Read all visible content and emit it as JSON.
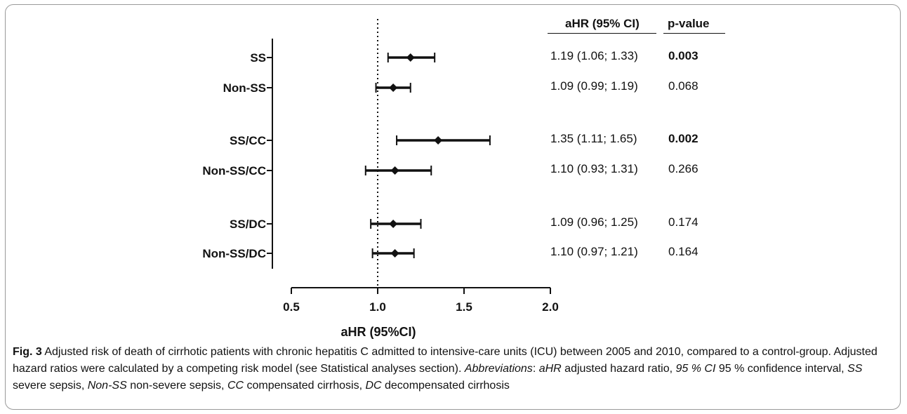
{
  "chart_data": {
    "type": "forest",
    "xlabel": "aHR (95%CI)",
    "xlim": [
      0.5,
      2.0
    ],
    "xticks": [
      0.5,
      1.0,
      1.5,
      2.0
    ],
    "xtick_labels": [
      "0.5",
      "1.0",
      "1.5",
      "2.0"
    ],
    "reference_line": 1.0,
    "table_headers": {
      "ahr": "aHR (95% CI)",
      "pvalue": "p-value"
    },
    "rows": [
      {
        "label": "SS",
        "hr": 1.19,
        "lo": 1.06,
        "hi": 1.33,
        "ci_text": "1.19 (1.06; 1.33)",
        "p": "0.003",
        "significant": true
      },
      {
        "label": "Non-SS",
        "hr": 1.09,
        "lo": 0.99,
        "hi": 1.19,
        "ci_text": "1.09 (0.99; 1.19)",
        "p": "0.068",
        "significant": false
      },
      {
        "label": "SS/CC",
        "hr": 1.35,
        "lo": 1.11,
        "hi": 1.65,
        "ci_text": "1.35 (1.11; 1.65)",
        "p": "0.002",
        "significant": true
      },
      {
        "label": "Non-SS/CC",
        "hr": 1.1,
        "lo": 0.93,
        "hi": 1.31,
        "ci_text": "1.10 (0.93; 1.31)",
        "p": "0.266",
        "significant": false
      },
      {
        "label": "SS/DC",
        "hr": 1.09,
        "lo": 0.96,
        "hi": 1.25,
        "ci_text": "1.09 (0.96; 1.25)",
        "p": "0.174",
        "significant": false
      },
      {
        "label": "Non-SS/DC",
        "hr": 1.1,
        "lo": 0.97,
        "hi": 1.21,
        "ci_text": "1.10 (0.97; 1.21)",
        "p": "0.164",
        "significant": false
      }
    ]
  },
  "caption": {
    "fig_label": "Fig. 3",
    "main_text": " Adjusted risk of death of cirrhotic patients with chronic hepatitis C admitted to intensive-care units (ICU) between 2005 and 2010, compared to a control-group. Adjusted hazard ratios were calculated by a competing risk model (see Statistical analyses section). ",
    "abbrev_word": "Abbreviations",
    "parts": [
      {
        "term": "aHR",
        "def": " adjusted hazard ratio, "
      },
      {
        "term": "95 % CI",
        "def": " 95 % confidence interval, "
      },
      {
        "term": "SS",
        "def": " severe sepsis, "
      },
      {
        "term": "Non-SS",
        "def": " non-severe sepsis, "
      },
      {
        "term": "CC",
        "def": " compensated cirrhosis, "
      },
      {
        "term": "DC",
        "def": " decompensated cirrhosis"
      }
    ]
  }
}
